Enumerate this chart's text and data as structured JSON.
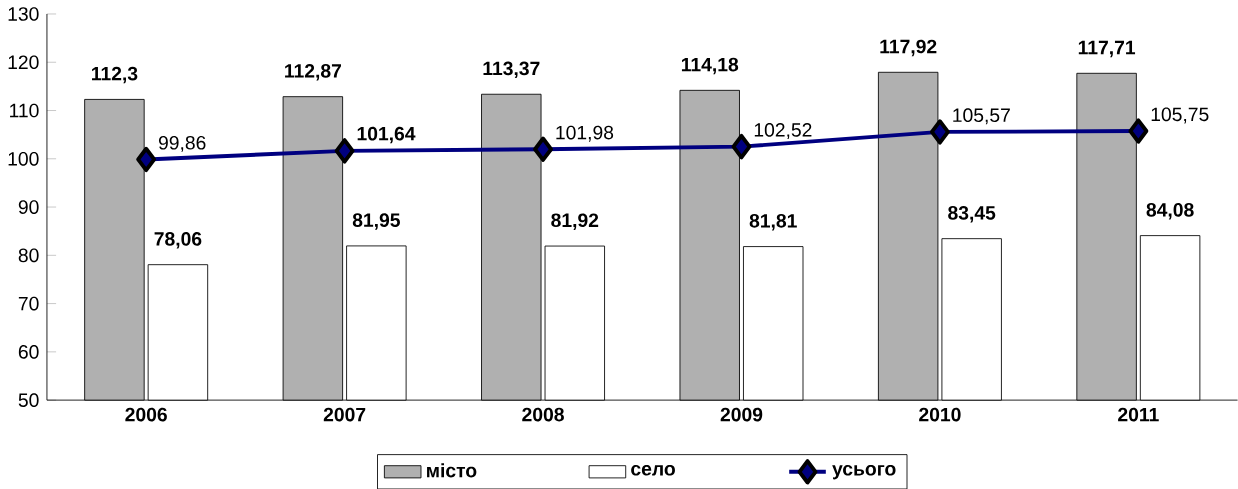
{
  "chart_data": {
    "type": "bar",
    "categories": [
      "2006",
      "2007",
      "2008",
      "2009",
      "2010",
      "2011"
    ],
    "series": [
      {
        "name": "місто",
        "color": "#b0b0b0",
        "values": [
          112.3,
          112.87,
          113.37,
          114.18,
          117.92,
          117.71
        ],
        "value_labels": [
          "112,3",
          "112,87",
          "113,37",
          "114,18",
          "117,92",
          "117,71"
        ]
      },
      {
        "name": "село",
        "color": "#ffffff",
        "values": [
          78.06,
          81.95,
          81.92,
          81.81,
          83.45,
          84.08
        ],
        "value_labels": [
          "78,06",
          "81,95",
          "81,92",
          "81,81",
          "83,45",
          "84,08"
        ]
      },
      {
        "name": "усього",
        "type": "line",
        "color": "#000080",
        "marker": "diamond",
        "values": [
          99.86,
          101.64,
          101.98,
          102.52,
          105.57,
          105.75
        ],
        "value_labels": [
          "99,86",
          "**101,64**",
          "101,98",
          "102,52",
          "105,57",
          "105,75"
        ]
      }
    ],
    "ylim": [
      50,
      130
    ],
    "yticks": [
      50,
      60,
      70,
      80,
      90,
      100,
      110,
      120,
      130
    ],
    "grid": false,
    "legend": "bottom"
  }
}
